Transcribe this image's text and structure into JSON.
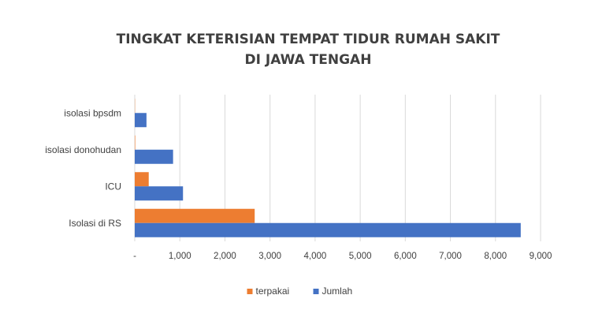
{
  "chart_data": {
    "type": "bar",
    "orientation": "horizontal",
    "title": [
      "TINGKAT KETERISIAN TEMPAT TIDUR RUMAH SAKIT",
      "DI JAWA TENGAH"
    ],
    "categories": [
      "isolasi bpsdm",
      "isolasi donohudan",
      "ICU",
      "Isolasi di RS"
    ],
    "series": [
      {
        "name": "terpakai",
        "color": "#ED7D31",
        "values": [
          5,
          10,
          310,
          2660
        ]
      },
      {
        "name": "Jumlah",
        "color": "#4472C4",
        "values": [
          260,
          850,
          1070,
          8560
        ]
      }
    ],
    "xlim": [
      0,
      9000
    ],
    "xticks": [
      0,
      1000,
      2000,
      3000,
      4000,
      5000,
      6000,
      7000,
      8000,
      9000
    ],
    "xtick_labels": [
      "-",
      "1,000",
      "2,000",
      "3,000",
      "4,000",
      "5,000",
      "6,000",
      "7,000",
      "8,000",
      "9,000"
    ],
    "grid": true,
    "legend_position": "bottom"
  }
}
